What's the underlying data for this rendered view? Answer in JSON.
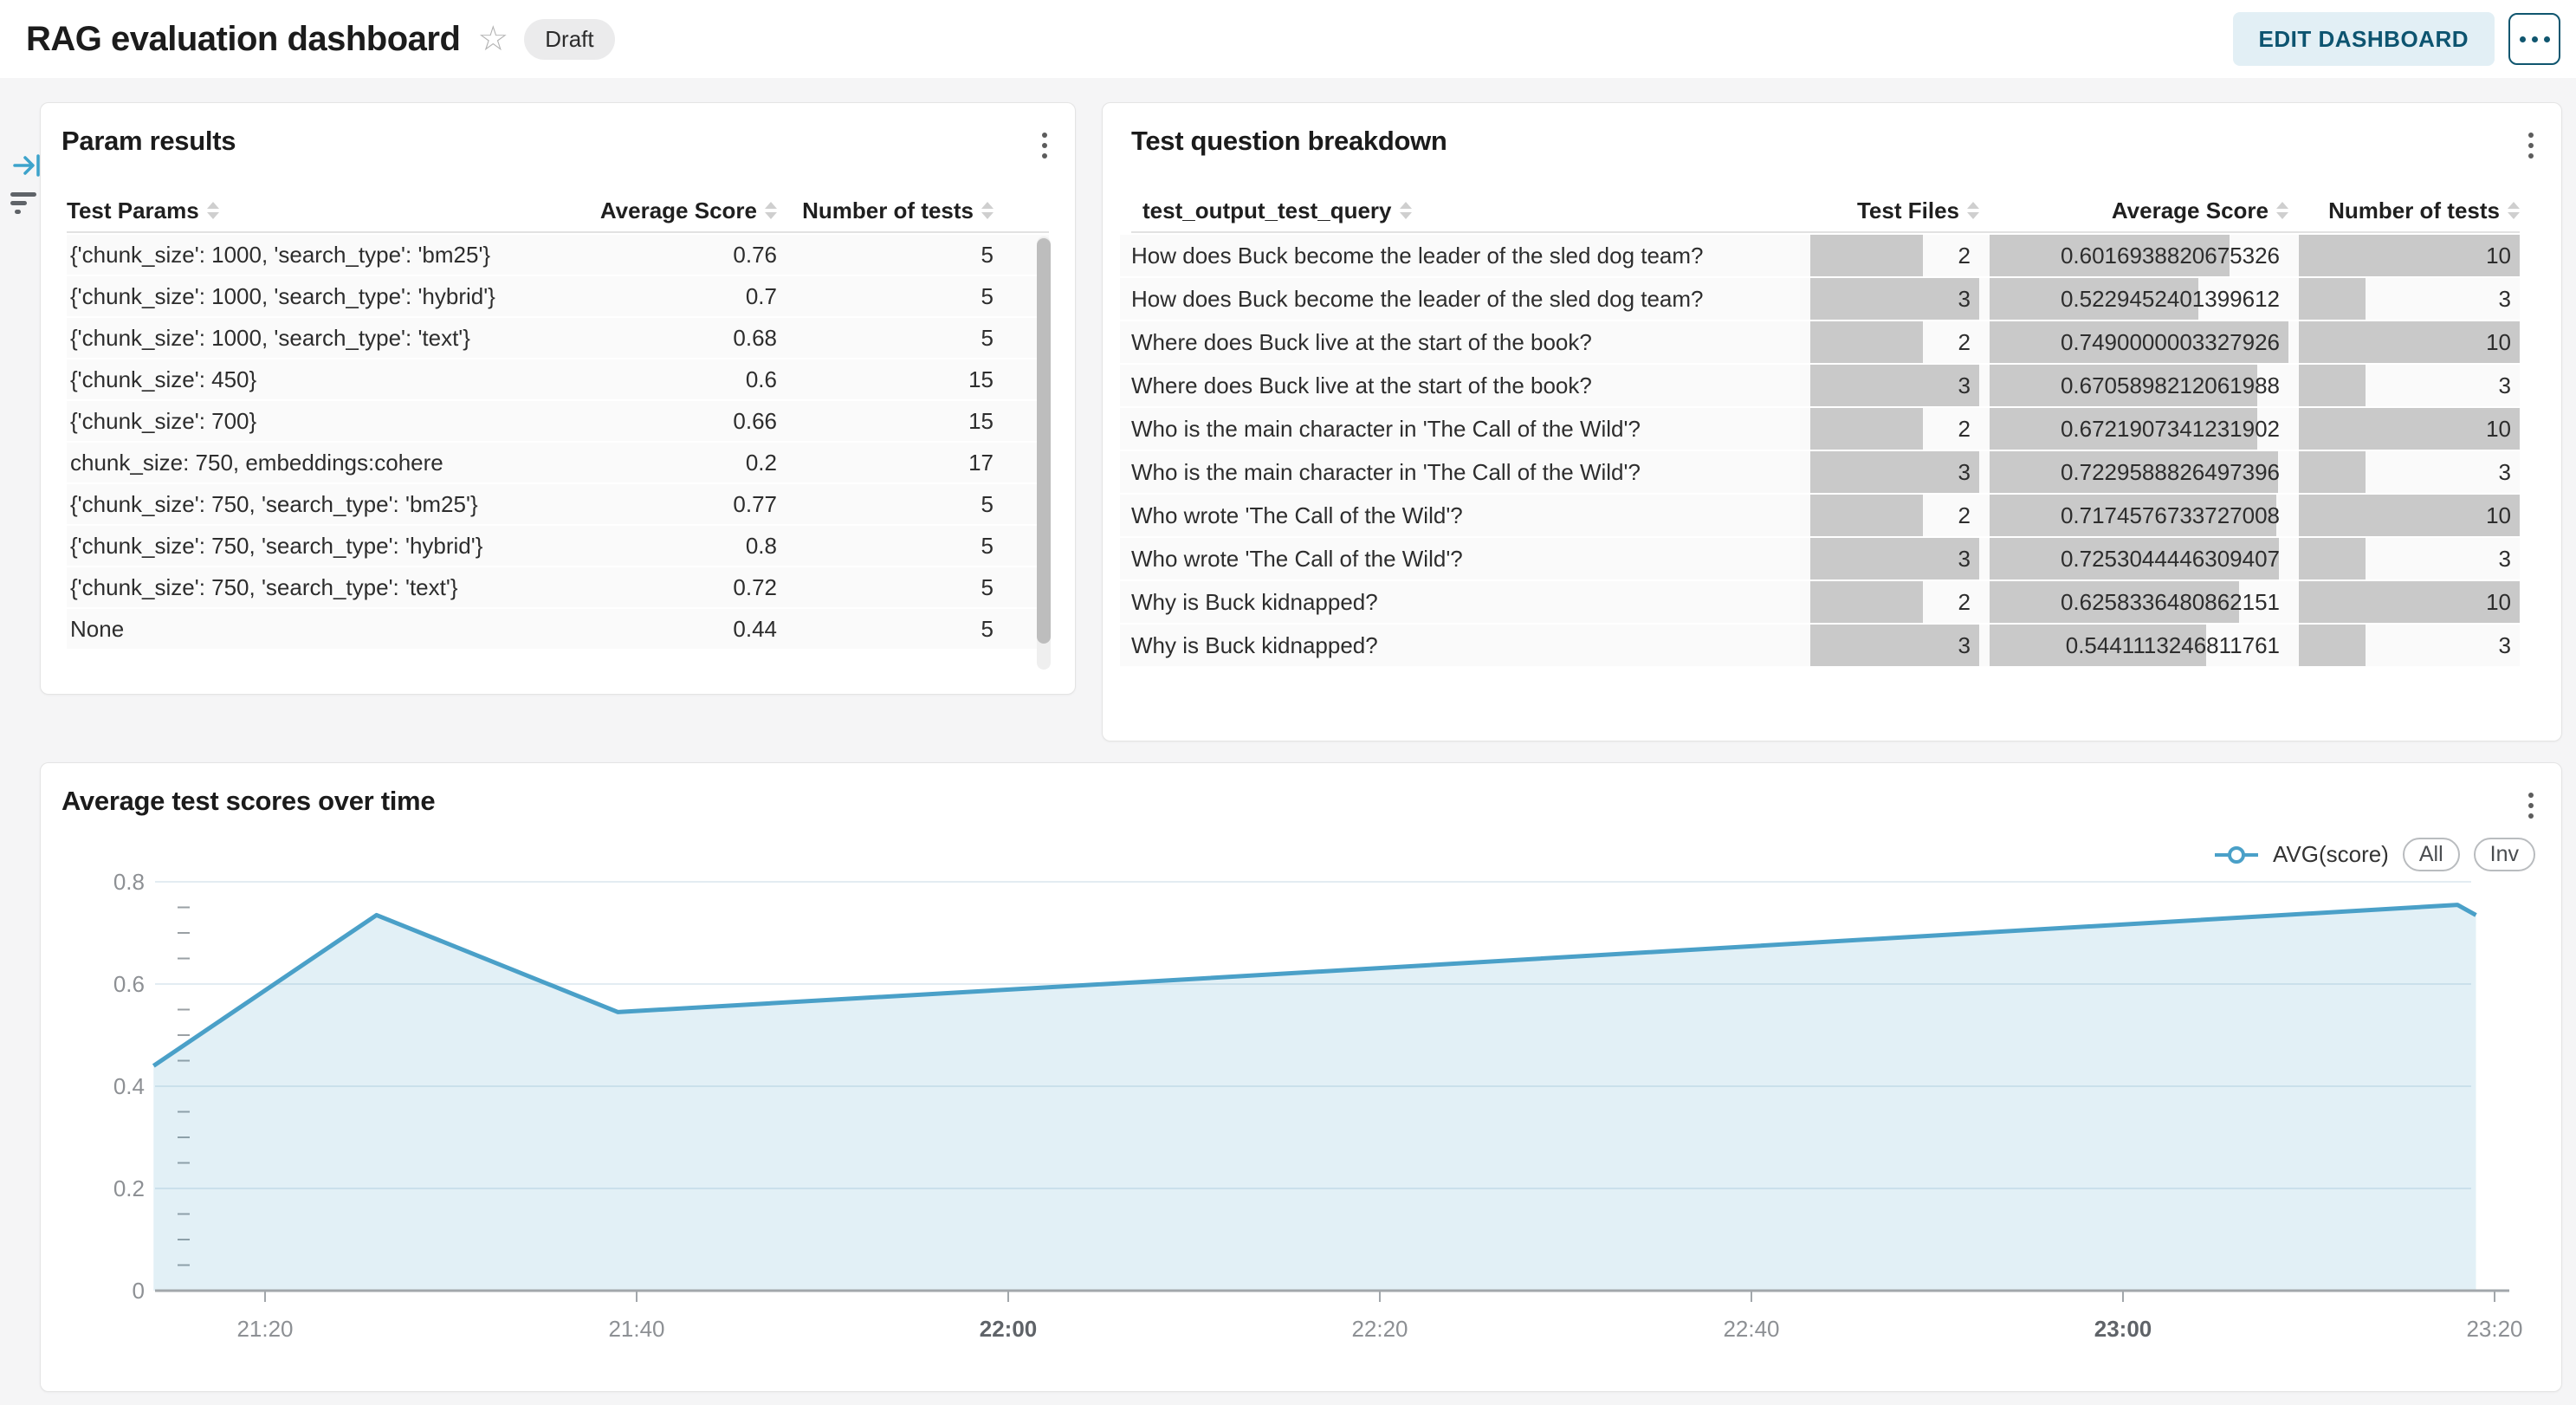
{
  "header": {
    "title": "RAG evaluation dashboard",
    "status": "Draft",
    "edit_label": "EDIT DASHBOARD"
  },
  "param_results": {
    "title": "Param results",
    "columns": [
      "Test Params",
      "Average Score",
      "Number of tests"
    ],
    "rows": [
      [
        "{'chunk_size': 1000, 'search_type': 'bm25'}",
        "0.76",
        "5"
      ],
      [
        "{'chunk_size': 1000, 'search_type': 'hybrid'}",
        "0.7",
        "5"
      ],
      [
        "{'chunk_size': 1000, 'search_type': 'text'}",
        "0.68",
        "5"
      ],
      [
        "{'chunk_size': 450}",
        "0.6",
        "15"
      ],
      [
        "{'chunk_size': 700}",
        "0.66",
        "15"
      ],
      [
        "chunk_size: 750, embeddings:cohere",
        "0.2",
        "17"
      ],
      [
        "{'chunk_size': 750, 'search_type': 'bm25'}",
        "0.77",
        "5"
      ],
      [
        "{'chunk_size': 750, 'search_type': 'hybrid'}",
        "0.8",
        "5"
      ],
      [
        "{'chunk_size': 750, 'search_type': 'text'}",
        "0.72",
        "5"
      ],
      [
        "None",
        "0.44",
        "5"
      ]
    ]
  },
  "question_breakdown": {
    "title": "Test question breakdown",
    "columns": [
      "test_output_test_query",
      "Test Files",
      "Average Score",
      "Number of tests"
    ],
    "rows": [
      {
        "query": "How does Buck become the leader of the sled dog team?",
        "files": "2",
        "score": "0.6016938820675326",
        "tests": "10"
      },
      {
        "query": "How does Buck become the leader of the sled dog team?",
        "files": "3",
        "score": "0.5229452401399612",
        "tests": "3"
      },
      {
        "query": "Where does Buck live at the start of the book?",
        "files": "2",
        "score": "0.7490000003327926",
        "tests": "10"
      },
      {
        "query": "Where does Buck live at the start of the book?",
        "files": "3",
        "score": "0.6705898212061988",
        "tests": "3"
      },
      {
        "query": "Who is the main character in 'The Call of the Wild'?",
        "files": "2",
        "score": "0.6721907341231902",
        "tests": "10"
      },
      {
        "query": "Who is the main character in 'The Call of the Wild'?",
        "files": "3",
        "score": "0.7229588826497396",
        "tests": "3"
      },
      {
        "query": "Who wrote 'The Call of the Wild'?",
        "files": "2",
        "score": "0.7174576733727008",
        "tests": "10"
      },
      {
        "query": "Who wrote 'The Call of the Wild'?",
        "files": "3",
        "score": "0.7253044446309407",
        "tests": "3"
      },
      {
        "query": "Why is Buck kidnapped?",
        "files": "2",
        "score": "0.6258336480862151",
        "tests": "10"
      },
      {
        "query": "Why is Buck kidnapped?",
        "files": "3",
        "score": "0.5441113246811761",
        "tests": "3"
      }
    ],
    "bar_max": {
      "files": 3,
      "score": 0.7490000003327926,
      "tests": 10
    },
    "bar_color": "#c9c9c9"
  },
  "chart_card": {
    "title": "Average test scores over time",
    "legend_label": "AVG(score)",
    "pill_all": "All",
    "pill_inv": "Inv"
  },
  "chart_data": {
    "type": "area",
    "title": "Average test scores over time",
    "series": [
      {
        "name": "AVG(score)",
        "x": [
          "21:14",
          "21:26",
          "21:39",
          "22:10",
          "23:18",
          "23:19"
        ],
        "y": [
          0.44,
          0.735,
          0.545,
          0.61,
          0.755,
          0.735
        ]
      }
    ],
    "x_ticks": [
      "21:20",
      "21:40",
      "22:00",
      "22:20",
      "22:40",
      "23:00",
      "23:20"
    ],
    "x_ticks_bold": [
      "22:00",
      "23:00"
    ],
    "y_ticks": [
      0.8,
      0.6,
      0.4,
      0.2,
      0
    ],
    "y_minor_step": 0.05,
    "ylim": [
      0,
      0.8
    ],
    "grid": "horizontal",
    "legend_position": "top-right",
    "line_color": "#4aa0c8",
    "fill_color": "rgba(74,159,198,0.16)",
    "grid_color": "#e3ecf2",
    "axis_color": "#a2a7ab",
    "tick_label_color": "#8d9094",
    "bold_tick_label_color": "#5f6368"
  }
}
